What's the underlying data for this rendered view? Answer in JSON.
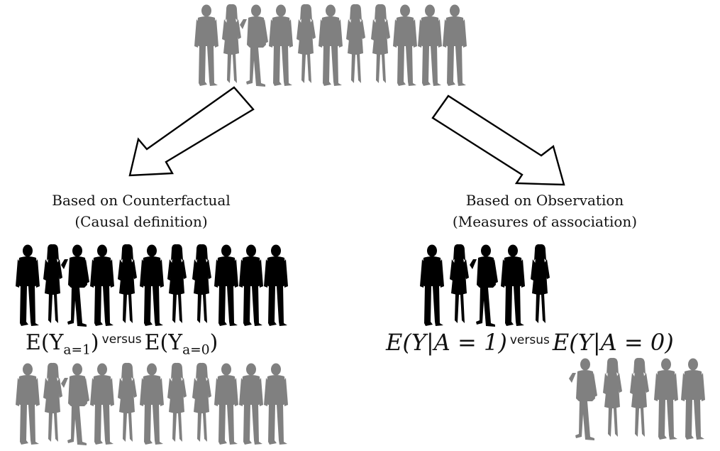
{
  "population": {
    "top_count": 11,
    "counterfactual_treated_count": 11,
    "counterfactual_untreated_count": 11,
    "observed_treated_count": 5,
    "observed_untreated_count": 5
  },
  "colors": {
    "untreated": "#808080",
    "treated": "#000000",
    "arrow_stroke": "#000000",
    "arrow_fill": "#ffffff"
  },
  "icons": {
    "person": "person-silhouette-icon",
    "arrow": "hollow-arrow-icon"
  },
  "left": {
    "caption_line1": "Based on Counterfactual",
    "caption_line2": "(Causal definition)",
    "expr_left_main": "E(Y",
    "expr_left_sub": "a=1",
    "expr_left_close": ")",
    "versus": "versus",
    "expr_right_main": "E(Y",
    "expr_right_sub": "a=0",
    "expr_right_close": ")"
  },
  "right": {
    "caption_line1": "Based on Observation",
    "caption_line2": "(Measures of association)",
    "expr_left": "E(Y|A = 1)",
    "versus": "versus",
    "expr_right": "E(Y|A = 0)"
  }
}
